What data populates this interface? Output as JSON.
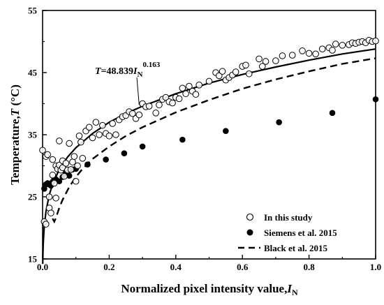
{
  "chart_data": {
    "type": "scatter",
    "xlabel": {
      "main": "Normalized pixel intensity value,",
      "var": "I",
      "sub": "N"
    },
    "ylabel": {
      "main": "Temperature,",
      "var": "T",
      "unit": " (°C)"
    },
    "xlim": [
      0.0,
      1.0
    ],
    "ylim": [
      15,
      55
    ],
    "xticks": [
      "0.0",
      "0.2",
      "0.4",
      "0.6",
      "0.8",
      "1.0"
    ],
    "xtick_values": [
      0.0,
      0.2,
      0.4,
      0.6,
      0.8,
      1.0
    ],
    "yticks": [
      "15",
      "25",
      "35",
      "45",
      "55"
    ],
    "ytick_values": [
      15,
      25,
      35,
      45,
      55
    ],
    "grid": false,
    "legend_position": "bottom-right",
    "annotation": {
      "lhs": "T",
      "eq": "=48.839",
      "var": "I",
      "sub": "N",
      "exp": "0.163",
      "anchor_x": 0.29,
      "anchor_y": 39.8
    },
    "series": [
      {
        "name": "In this study",
        "style": "open-circle",
        "x": [
          0.0,
          0.005,
          0.01,
          0.01,
          0.015,
          0.02,
          0.02,
          0.025,
          0.03,
          0.03,
          0.035,
          0.04,
          0.04,
          0.045,
          0.05,
          0.05,
          0.055,
          0.06,
          0.06,
          0.065,
          0.07,
          0.075,
          0.08,
          0.085,
          0.09,
          0.095,
          0.1,
          0.105,
          0.11,
          0.115,
          0.12,
          0.13,
          0.14,
          0.15,
          0.16,
          0.17,
          0.18,
          0.19,
          0.2,
          0.21,
          0.22,
          0.23,
          0.24,
          0.25,
          0.26,
          0.27,
          0.28,
          0.29,
          0.3,
          0.31,
          0.32,
          0.34,
          0.35,
          0.36,
          0.37,
          0.38,
          0.39,
          0.4,
          0.41,
          0.42,
          0.43,
          0.44,
          0.45,
          0.46,
          0.47,
          0.5,
          0.52,
          0.53,
          0.54,
          0.55,
          0.56,
          0.57,
          0.58,
          0.6,
          0.61,
          0.62,
          0.65,
          0.66,
          0.67,
          0.7,
          0.72,
          0.75,
          0.78,
          0.8,
          0.82,
          0.84,
          0.86,
          0.87,
          0.88,
          0.9,
          0.92,
          0.93,
          0.94,
          0.95,
          0.96,
          0.97,
          0.98,
          0.99,
          1.0
        ],
        "y": [
          32.5,
          21.0,
          31.5,
          20.6,
          31.8,
          23.2,
          25.0,
          22.4,
          28.5,
          31.0,
          27.2,
          24.8,
          30.0,
          29.5,
          30.1,
          34.0,
          29.3,
          30.8,
          29.7,
          28.3,
          30.4,
          29.3,
          33.6,
          29.4,
          30.6,
          31.5,
          27.5,
          30.0,
          34.8,
          33.8,
          31.2,
          35.6,
          36.2,
          34.5,
          37.0,
          35.0,
          36.5,
          35.2,
          34.8,
          36.8,
          35.0,
          37.4,
          37.9,
          38.1,
          38.7,
          38.4,
          37.6,
          38.2,
          40.0,
          39.5,
          39.6,
          38.5,
          39.8,
          40.7,
          41.0,
          40.3,
          40.1,
          41.0,
          40.8,
          42.5,
          41.6,
          42.8,
          42.0,
          41.5,
          43.0,
          43.6,
          45.0,
          44.5,
          45.2,
          43.8,
          44.2,
          44.6,
          45.1,
          46.0,
          46.2,
          44.8,
          47.2,
          46.0,
          46.8,
          46.9,
          47.7,
          47.8,
          48.5,
          48.1,
          48.0,
          48.8,
          49.0,
          48.6,
          49.6,
          49.4,
          49.5,
          49.8,
          49.7,
          49.9,
          50.0,
          49.8,
          50.2,
          50.0,
          50.1
        ]
      },
      {
        "name": "Siemens et al. 2015",
        "style": "filled-circle",
        "x": [
          0.005,
          0.01,
          0.015,
          0.02,
          0.025,
          0.03,
          0.035,
          0.04,
          0.05,
          0.06,
          0.07,
          0.08,
          0.09,
          0.1,
          0.135,
          0.19,
          0.245,
          0.3,
          0.42,
          0.55,
          0.71,
          0.87,
          1.0
        ],
        "y": [
          26.3,
          27.0,
          27.2,
          27.0,
          26.8,
          27.4,
          27.8,
          27.8,
          27.5,
          28.2,
          28.8,
          28.4,
          29.4,
          29.5,
          30.2,
          31.0,
          32.0,
          33.1,
          34.2,
          35.6,
          37.0,
          38.5,
          40.7
        ]
      },
      {
        "name": "Black et al. 2015",
        "style": "dashed-line",
        "x": [
          0.03,
          0.035,
          0.04,
          0.05,
          0.06,
          0.08,
          0.1,
          0.12,
          0.15,
          0.2,
          0.25,
          0.3,
          0.4,
          0.5,
          0.6,
          0.7,
          0.8,
          0.9,
          1.0
        ],
        "y": [
          21.5,
          21.0,
          21.6,
          23.2,
          24.5,
          26.6,
          28.2,
          29.5,
          31.1,
          33.1,
          34.8,
          36.2,
          38.6,
          40.6,
          42.4,
          43.9,
          45.2,
          46.4,
          47.3
        ]
      },
      {
        "name": "",
        "style": "solid-line",
        "x": [
          0.0005,
          0.001,
          0.002,
          0.005,
          0.01,
          0.02,
          0.03,
          0.05,
          0.075,
          0.1,
          0.15,
          0.2,
          0.25,
          0.3,
          0.4,
          0.5,
          0.6,
          0.7,
          0.8,
          0.9,
          1.0
        ],
        "y": [
          14.2,
          15.8,
          17.6,
          20.3,
          22.6,
          25.3,
          27.0,
          29.4,
          31.4,
          32.9,
          35.2,
          37.0,
          38.4,
          39.6,
          41.6,
          43.3,
          44.7,
          45.9,
          47.0,
          48.0,
          48.8
        ]
      }
    ]
  }
}
